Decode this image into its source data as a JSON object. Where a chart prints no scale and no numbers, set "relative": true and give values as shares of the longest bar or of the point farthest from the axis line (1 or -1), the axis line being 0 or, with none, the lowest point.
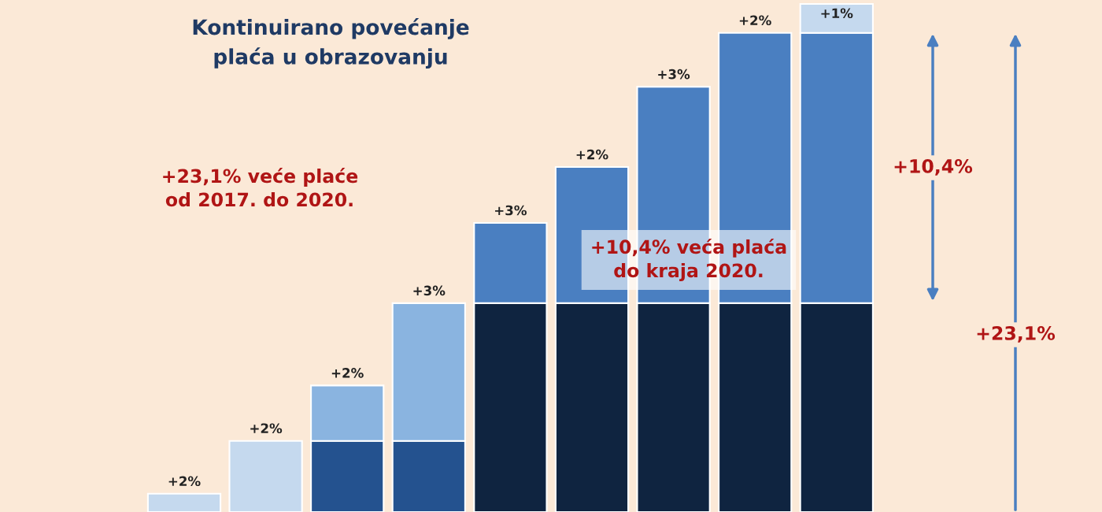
{
  "chart_data": {
    "type": "bar",
    "relative": true,
    "stacked": true,
    "title": "Kontinuirano povećanje\nplaća u obrazovanju",
    "categories": [
      null,
      null,
      null,
      null,
      null,
      null,
      null,
      null,
      null
    ],
    "series": [
      {
        "values": [
          0.036,
          0.14,
          0.14,
          0.14,
          0.411,
          0.411,
          0.411,
          0.411,
          0.411
        ],
        "colors": [
          "#c5d9ee",
          "#c5d9ee",
          "#24528f",
          "#24528f",
          "#0f2440",
          "#0f2440",
          "#0f2440",
          "#0f2440",
          "#0f2440"
        ]
      },
      {
        "values": [
          null,
          null,
          0.109,
          0.271,
          0.158,
          0.268,
          0.426,
          0.532,
          0.532
        ],
        "colors": [
          "#8ab4e0",
          "#8ab4e0",
          "#8ab4e0",
          "#8ab4e0",
          "#4a7fc1",
          "#4a7fc1",
          "#4a7fc1",
          "#4a7fc1",
          "#4a7fc1"
        ]
      },
      {
        "values": [
          null,
          null,
          null,
          null,
          null,
          null,
          null,
          null,
          0.057
        ],
        "colors": [
          "#c5d9ee",
          "#c5d9ee",
          "#c5d9ee",
          "#c5d9ee",
          "#c5d9ee",
          "#c5d9ee",
          "#c5d9ee",
          "#c5d9ee",
          "#c5d9ee"
        ]
      }
    ],
    "annotations": [
      "+23,1% veće plaće\nod 2017. do 2020.",
      "+10,4% veća plaća\ndo kraja 2020.",
      "+10,4%",
      "+23,1%",
      "+2%",
      "+2%",
      "+2%",
      "+3%",
      "+3%",
      "+2%",
      "+3%",
      "+2%",
      "+1%"
    ],
    "grid": false
  }
}
